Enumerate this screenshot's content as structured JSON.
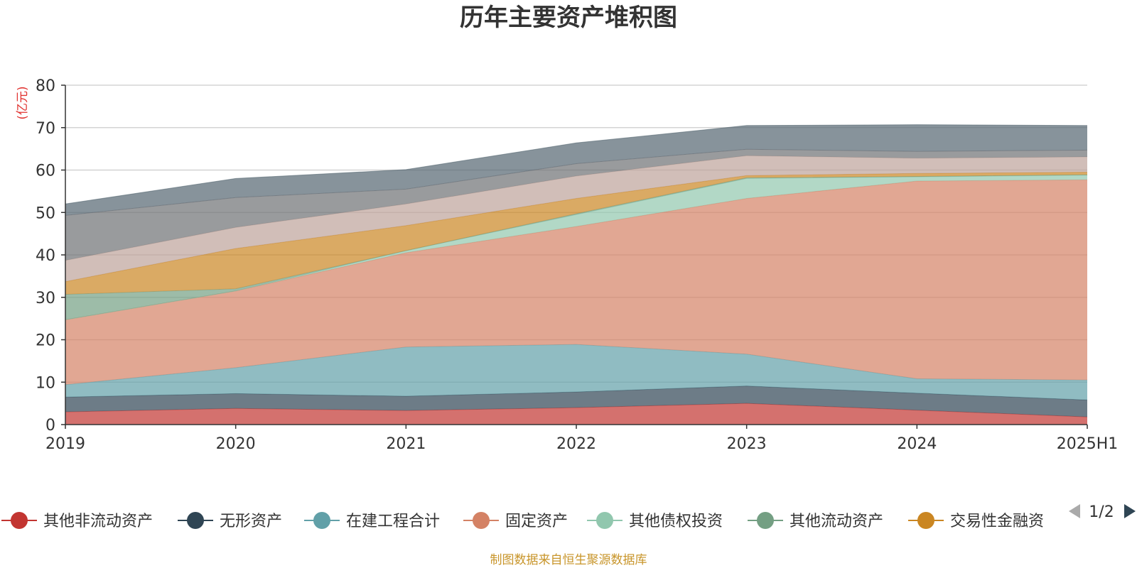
{
  "chart_data": {
    "type": "area",
    "stacked": true,
    "title": "历年主要资产堆积图",
    "unit": "(亿元)",
    "x": [
      "2019",
      "2020",
      "2021",
      "2022",
      "2023",
      "2024",
      "2025H1"
    ],
    "ylim": [
      0,
      80
    ],
    "yticks": [
      0,
      10,
      20,
      30,
      40,
      50,
      60,
      70,
      80
    ],
    "grid": true,
    "series": [
      {
        "name": "其他非流动资产",
        "color": "#c23531",
        "values": [
          3.0,
          3.8,
          3.3,
          4.0,
          5.0,
          3.4,
          1.8
        ]
      },
      {
        "name": "无形资产",
        "color": "#2f4554",
        "values": [
          3.5,
          3.5,
          3.4,
          3.7,
          4.1,
          4.0,
          4.0
        ]
      },
      {
        "name": "在建工程合计",
        "color": "#61a0a8",
        "values": [
          2.9,
          6.1,
          11.6,
          11.2,
          7.5,
          3.4,
          4.7
        ]
      },
      {
        "name": "固定资产",
        "color": "#d48265",
        "values": [
          15.3,
          18.1,
          22.2,
          27.8,
          36.7,
          46.6,
          47.2
        ]
      },
      {
        "name": "其他债权投资",
        "color": "#91c7ae",
        "values": [
          0.0,
          0.0,
          0.5,
          2.8,
          4.7,
          1.0,
          1.1
        ]
      },
      {
        "name": "其他流动资产",
        "color": "#749f83",
        "values": [
          6.0,
          0.5,
          0.0,
          0.2,
          0.2,
          0.1,
          0.1
        ]
      },
      {
        "name": "交易性金融资",
        "color": "#ca8622",
        "values": [
          3.0,
          9.5,
          5.9,
          3.6,
          0.5,
          0.7,
          0.6
        ]
      },
      {
        "name": "",
        "color": "#bda29a",
        "values": [
          5.0,
          5.0,
          5.1,
          5.3,
          4.7,
          3.6,
          3.6
        ]
      },
      {
        "name": "",
        "color": "#6e7074",
        "values": [
          10.6,
          7.0,
          3.5,
          2.9,
          1.5,
          1.6,
          1.6
        ]
      },
      {
        "name": "",
        "color": "#546570",
        "values": [
          2.7,
          4.5,
          4.6,
          4.9,
          5.6,
          6.3,
          5.8
        ]
      }
    ]
  },
  "legend": {
    "items": [
      {
        "label": "其他非流动资产",
        "color": "#c23531"
      },
      {
        "label": "无形资产",
        "color": "#2f4554"
      },
      {
        "label": "在建工程合计",
        "color": "#61a0a8"
      },
      {
        "label": "固定资产",
        "color": "#d48265"
      },
      {
        "label": "其他债权投资",
        "color": "#91c7ae"
      },
      {
        "label": "其他流动资产",
        "color": "#749f83"
      },
      {
        "label": "交易性金融资",
        "color": "#ca8622"
      }
    ],
    "page": "1/2"
  },
  "source_note": "制图数据来自恒生聚源数据库",
  "colors": {
    "unit": "#e0312e",
    "source": "#c8952a",
    "axis": "#333333",
    "grid": "#cccccc",
    "pager_disabled": "#aaaaaa",
    "pager_active": "#2f4554"
  }
}
